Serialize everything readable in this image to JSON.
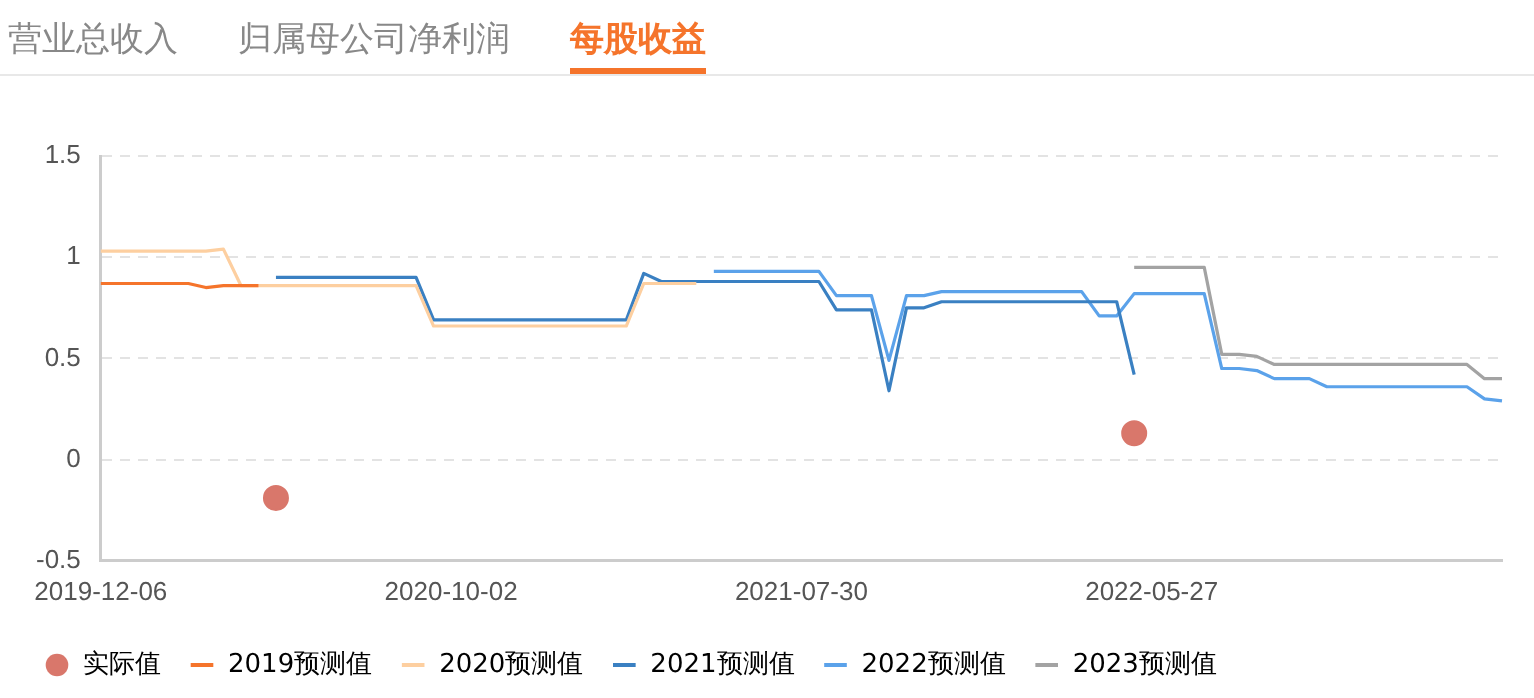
{
  "chart_data": {
    "type": "line",
    "annotations": [
      "营业总收入",
      "归属母公司净利润",
      "每股收益"
    ],
    "categories": [
      "2019-12-06",
      null,
      null,
      null,
      null,
      null,
      null,
      null,
      null,
      null,
      null,
      null,
      null,
      null,
      null,
      null,
      null,
      null,
      null,
      null,
      "2020-10-02",
      null,
      null,
      null,
      null,
      null,
      null,
      null,
      null,
      null,
      null,
      null,
      null,
      null,
      null,
      null,
      null,
      null,
      null,
      null,
      "2021-07-30",
      null,
      null,
      null,
      null,
      null,
      null,
      null,
      null,
      null,
      null,
      null,
      null,
      null,
      null,
      null,
      null,
      null,
      null,
      null,
      "2022-05-27",
      null,
      null,
      null,
      null,
      null,
      null,
      null,
      null,
      null,
      null,
      null,
      null,
      null,
      null,
      null,
      null,
      null,
      null,
      null,
      null
    ],
    "ylim": [
      -0.5,
      1.5
    ],
    "yticks": [
      -0.5,
      0,
      0.5,
      1,
      1.5
    ],
    "grid": "y",
    "legend": "bottom",
    "marker": "none",
    "line_style": "solid",
    "series": [
      {
        "name": "实际值",
        "type": "scatter",
        "marker": "circle",
        "color": "#d9776b",
        "values": [
          null,
          null,
          null,
          null,
          null,
          null,
          null,
          null,
          null,
          null,
          -0.19,
          null,
          null,
          null,
          null,
          null,
          null,
          null,
          null,
          null,
          null,
          null,
          null,
          null,
          null,
          null,
          null,
          null,
          null,
          null,
          null,
          null,
          null,
          null,
          null,
          null,
          null,
          null,
          null,
          null,
          null,
          null,
          null,
          null,
          null,
          null,
          null,
          null,
          null,
          null,
          null,
          null,
          null,
          null,
          null,
          null,
          null,
          null,
          null,
          0.13,
          null,
          null,
          null,
          null,
          null,
          null,
          null,
          null,
          null,
          null,
          null,
          null,
          null,
          null,
          null,
          null,
          null,
          null,
          null,
          null,
          null
        ]
      },
      {
        "name": "2019预测值",
        "color": "#f5742b",
        "values": [
          0.87,
          0.87,
          0.87,
          0.87,
          0.87,
          0.87,
          0.85,
          0.86,
          0.86,
          0.86,
          null,
          null,
          null,
          null,
          null,
          null,
          null,
          null,
          null,
          null,
          null,
          null,
          null,
          null,
          null,
          null,
          null,
          null,
          null,
          null,
          null,
          null,
          null,
          null,
          null,
          null,
          null,
          null,
          null,
          null,
          null,
          null,
          null,
          null,
          null,
          null,
          null,
          null,
          null,
          null,
          null,
          null,
          null,
          null,
          null,
          null,
          null,
          null,
          null,
          null,
          null,
          null,
          null,
          null,
          null,
          null,
          null,
          null,
          null,
          null,
          null,
          null,
          null,
          null,
          null,
          null,
          null,
          null,
          null,
          null,
          null
        ]
      },
      {
        "name": "2020预测值",
        "color": "#fdcfa0",
        "values": [
          1.03,
          1.03,
          1.03,
          1.03,
          1.03,
          1.03,
          1.03,
          1.04,
          0.86,
          0.86,
          0.86,
          0.86,
          0.86,
          0.86,
          0.86,
          0.86,
          0.86,
          0.86,
          0.86,
          0.66,
          0.66,
          0.66,
          0.66,
          0.66,
          0.66,
          0.66,
          0.66,
          0.66,
          0.66,
          0.66,
          0.66,
          0.87,
          0.87,
          0.87,
          0.87,
          null,
          null,
          null,
          null,
          null,
          null,
          null,
          null,
          null,
          null,
          null,
          null,
          null,
          null,
          null,
          null,
          null,
          null,
          null,
          null,
          null,
          null,
          null,
          null,
          null,
          null,
          null,
          null,
          null,
          null,
          null,
          null,
          null,
          null,
          null,
          null,
          null,
          null,
          null,
          null,
          null,
          null,
          null,
          null,
          null,
          null
        ]
      },
      {
        "name": "2021预测值",
        "color": "#3a80c2",
        "values": [
          null,
          null,
          null,
          null,
          null,
          null,
          null,
          null,
          null,
          null,
          0.9,
          0.9,
          0.9,
          0.9,
          0.9,
          0.9,
          0.9,
          0.9,
          0.9,
          0.69,
          0.69,
          0.69,
          0.69,
          0.69,
          0.69,
          0.69,
          0.69,
          0.69,
          0.69,
          0.69,
          0.69,
          0.92,
          0.88,
          0.88,
          0.88,
          0.88,
          0.88,
          0.88,
          0.88,
          0.88,
          0.88,
          0.88,
          0.74,
          0.74,
          0.74,
          0.34,
          0.75,
          0.75,
          0.78,
          0.78,
          0.78,
          0.78,
          0.78,
          0.78,
          0.78,
          0.78,
          0.78,
          0.78,
          0.78,
          0.42,
          null,
          null,
          null,
          null,
          null,
          null,
          null,
          null,
          null,
          null,
          null,
          null,
          null,
          null,
          null,
          null,
          null,
          null,
          null,
          null,
          null
        ]
      },
      {
        "name": "2022预测值",
        "color": "#5ba2ea",
        "values": [
          null,
          null,
          null,
          null,
          null,
          null,
          null,
          null,
          null,
          null,
          null,
          null,
          null,
          null,
          null,
          null,
          null,
          null,
          null,
          null,
          null,
          null,
          null,
          null,
          null,
          null,
          null,
          null,
          null,
          null,
          null,
          null,
          null,
          null,
          null,
          0.93,
          0.93,
          0.93,
          0.93,
          0.93,
          0.93,
          0.93,
          0.81,
          0.81,
          0.81,
          0.49,
          0.81,
          0.81,
          0.83,
          0.83,
          0.83,
          0.83,
          0.83,
          0.83,
          0.83,
          0.83,
          0.83,
          0.71,
          0.71,
          0.82,
          0.82,
          0.82,
          0.82,
          0.82,
          0.45,
          0.45,
          0.44,
          0.4,
          0.4,
          0.4,
          0.36,
          0.36,
          0.36,
          0.36,
          0.36,
          0.36,
          0.36,
          0.36,
          0.36,
          0.3,
          0.29
        ]
      },
      {
        "name": "2023预测值",
        "color": "#a3a3a3",
        "values": [
          null,
          null,
          null,
          null,
          null,
          null,
          null,
          null,
          null,
          null,
          null,
          null,
          null,
          null,
          null,
          null,
          null,
          null,
          null,
          null,
          null,
          null,
          null,
          null,
          null,
          null,
          null,
          null,
          null,
          null,
          null,
          null,
          null,
          null,
          null,
          null,
          null,
          null,
          null,
          null,
          null,
          null,
          null,
          null,
          null,
          null,
          null,
          null,
          null,
          null,
          null,
          null,
          null,
          null,
          null,
          null,
          null,
          null,
          null,
          0.95,
          0.95,
          0.95,
          0.95,
          0.95,
          0.52,
          0.52,
          0.51,
          0.47,
          0.47,
          0.47,
          0.47,
          0.47,
          0.47,
          0.47,
          0.47,
          0.47,
          0.47,
          0.47,
          0.47,
          0.4,
          0.4
        ]
      }
    ]
  }
}
